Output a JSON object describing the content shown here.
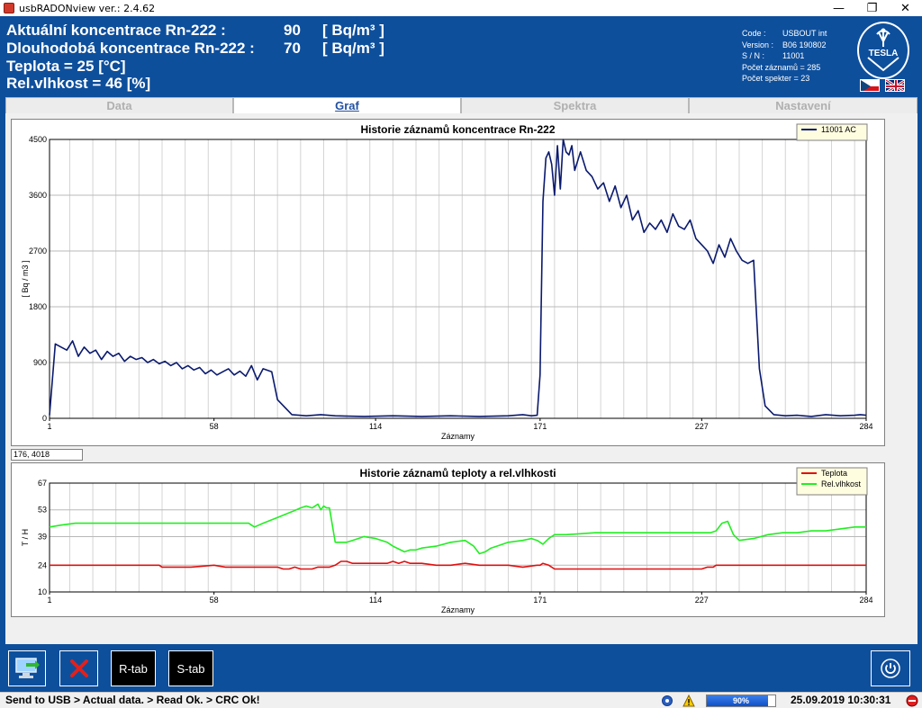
{
  "window": {
    "title": "usbRADONview ver.: 2.4.62",
    "minimize": "—",
    "restore": "❐",
    "close": "✕"
  },
  "header": {
    "line1_label": "Aktuální koncentrace Rn-222 :",
    "line1_value": "90",
    "line1_unit": "[ Bq/m³ ]",
    "line2_label": "Dlouhodobá koncentrace Rn-222 :",
    "line2_value": "70",
    "line2_unit": "[ Bq/m³ ]",
    "line3": "Teplota = 25  [°C]",
    "line4": "Rel.vlhkost = 46  [%]"
  },
  "device_info": [
    {
      "key": "Code :",
      "value": "USBOUT int"
    },
    {
      "key": "Version :",
      "value": "B06 190802"
    },
    {
      "key": "S / N :",
      "value": "11001"
    },
    {
      "key": "Počet záznamů = 285",
      "value": ""
    },
    {
      "key": "Počet spekter = 23",
      "value": ""
    }
  ],
  "logo": {
    "text": "TESLA",
    "color": "#0e4f9c"
  },
  "tabs": [
    {
      "label": "Data",
      "active": false
    },
    {
      "label": "Graf",
      "active": true
    },
    {
      "label": "Spektra",
      "active": false
    },
    {
      "label": "Nastavení",
      "active": false
    }
  ],
  "cursor_readout": "176, 4018",
  "toolbar": {
    "send_icon": "computer-send-icon",
    "delete_icon": "red-x-icon",
    "rtab_label": "R-tab",
    "stab_label": "S-tab",
    "power_icon": "power-icon"
  },
  "status": {
    "message": "Send to USB > Actual data. > Read Ok. > CRC Ok!",
    "progress_percent": 90,
    "progress_label": "90%",
    "datetime": "25.09.2019 10:30:31"
  },
  "colors": {
    "app_blue": "#0e4f9c",
    "radon_series": "#0a1a6e",
    "temp_series": "#e01010",
    "humidity_series": "#22ee22"
  },
  "chart_data": [
    {
      "type": "line",
      "title": "Historie záznamů koncentrace Rn-222",
      "xlabel": "Záznamy",
      "ylabel": "[ Bq / m3 ]",
      "xlim": [
        1,
        284
      ],
      "ylim": [
        0,
        4500
      ],
      "xticks": [
        1,
        58,
        114,
        171,
        227,
        284
      ],
      "yticks": [
        0,
        900,
        1800,
        2700,
        3600,
        4500
      ],
      "grid": true,
      "legend": "top-right",
      "series": [
        {
          "name": "11001 AC",
          "color": "#0a1a6e",
          "x": [
            1,
            3,
            5,
            7,
            9,
            11,
            13,
            15,
            17,
            19,
            21,
            23,
            25,
            27,
            29,
            31,
            33,
            35,
            37,
            39,
            41,
            43,
            45,
            47,
            49,
            51,
            53,
            55,
            57,
            59,
            61,
            63,
            65,
            67,
            69,
            71,
            73,
            75,
            78,
            80,
            85,
            90,
            95,
            100,
            110,
            120,
            130,
            140,
            150,
            160,
            165,
            168,
            170,
            171,
            172,
            173,
            174,
            175,
            176,
            177,
            178,
            179,
            180,
            181,
            182,
            183,
            185,
            187,
            189,
            191,
            193,
            195,
            197,
            199,
            201,
            203,
            205,
            207,
            209,
            211,
            213,
            215,
            217,
            219,
            221,
            223,
            225,
            227,
            229,
            231,
            233,
            235,
            237,
            239,
            241,
            243,
            245,
            247,
            249,
            252,
            256,
            260,
            265,
            270,
            275,
            280,
            282,
            284
          ],
          "y": [
            50,
            1200,
            1150,
            1100,
            1250,
            1000,
            1150,
            1050,
            1100,
            950,
            1080,
            1000,
            1050,
            920,
            1000,
            950,
            980,
            900,
            950,
            880,
            920,
            850,
            900,
            800,
            850,
            780,
            820,
            720,
            780,
            700,
            750,
            800,
            700,
            760,
            680,
            850,
            620,
            800,
            750,
            300,
            60,
            40,
            60,
            40,
            30,
            40,
            30,
            40,
            30,
            40,
            60,
            40,
            50,
            700,
            3500,
            4200,
            4300,
            4100,
            3600,
            4400,
            3700,
            4500,
            4300,
            4250,
            4400,
            4000,
            4300,
            4000,
            3900,
            3700,
            3800,
            3500,
            3750,
            3400,
            3600,
            3200,
            3350,
            3000,
            3150,
            3050,
            3200,
            3000,
            3300,
            3100,
            3050,
            3200,
            2900,
            2800,
            2700,
            2500,
            2800,
            2600,
            2900,
            2700,
            2550,
            2500,
            2550,
            800,
            200,
            60,
            40,
            50,
            30,
            60,
            40,
            50,
            60,
            50
          ]
        }
      ]
    },
    {
      "type": "line",
      "title": "Historie záznamů teploty a rel.vlhkosti",
      "xlabel": "Záznamy",
      "ylabel": "T / H",
      "xlim": [
        1,
        284
      ],
      "ylim": [
        10,
        67
      ],
      "xticks": [
        1,
        58,
        114,
        171,
        227,
        284
      ],
      "yticks": [
        10,
        24,
        39,
        53,
        67
      ],
      "grid": true,
      "legend": "top-right",
      "series": [
        {
          "name": "Teplota",
          "color": "#e01010",
          "x": [
            1,
            10,
            20,
            30,
            39,
            40,
            50,
            58,
            62,
            70,
            80,
            82,
            84,
            86,
            88,
            90,
            92,
            94,
            96,
            98,
            100,
            102,
            104,
            106,
            110,
            114,
            118,
            120,
            122,
            124,
            126,
            130,
            135,
            140,
            145,
            150,
            155,
            160,
            165,
            170,
            171,
            172,
            174,
            176,
            180,
            185,
            190,
            200,
            210,
            220,
            225,
            227,
            229,
            231,
            232,
            233,
            240,
            250,
            260,
            270,
            275,
            280,
            284
          ],
          "y": [
            24,
            24,
            24,
            24,
            24,
            23,
            23,
            24,
            23,
            23,
            23,
            22,
            22,
            23,
            22,
            22,
            22,
            23,
            23,
            23,
            24,
            26,
            26,
            25,
            25,
            25,
            25,
            26,
            25,
            26,
            25,
            25,
            24,
            24,
            25,
            24,
            24,
            24,
            23,
            24,
            24,
            25,
            24,
            22,
            22,
            22,
            22,
            22,
            22,
            22,
            22,
            22,
            23,
            23,
            24,
            24,
            24,
            24,
            24,
            24,
            24,
            24,
            24
          ]
        },
        {
          "name": "Rel.vlhkost",
          "color": "#22ee22",
          "x": [
            1,
            5,
            10,
            20,
            30,
            40,
            50,
            58,
            65,
            70,
            72,
            75,
            80,
            85,
            88,
            90,
            92,
            94,
            95,
            96,
            97,
            98,
            100,
            102,
            104,
            106,
            108,
            110,
            114,
            118,
            120,
            124,
            126,
            128,
            130,
            135,
            140,
            145,
            148,
            150,
            152,
            154,
            156,
            160,
            165,
            168,
            170,
            171,
            172,
            174,
            176,
            180,
            190,
            200,
            210,
            220,
            225,
            227,
            230,
            232,
            234,
            236,
            238,
            240,
            245,
            250,
            255,
            260,
            265,
            270,
            275,
            280,
            284
          ],
          "y": [
            44,
            45,
            46,
            46,
            46,
            46,
            46,
            46,
            46,
            46,
            44,
            46,
            49,
            52,
            54,
            55,
            54,
            56,
            53,
            55,
            54,
            54,
            36,
            36,
            36,
            37,
            38,
            39,
            38,
            36,
            34,
            31,
            32,
            32,
            33,
            34,
            36,
            37,
            34,
            30,
            31,
            33,
            34,
            36,
            37,
            38,
            37,
            36,
            35,
            38,
            40,
            40,
            41,
            41,
            41,
            41,
            41,
            41,
            41,
            42,
            46,
            47,
            40,
            37,
            38,
            40,
            41,
            41,
            42,
            42,
            43,
            44,
            44
          ]
        }
      ]
    }
  ]
}
